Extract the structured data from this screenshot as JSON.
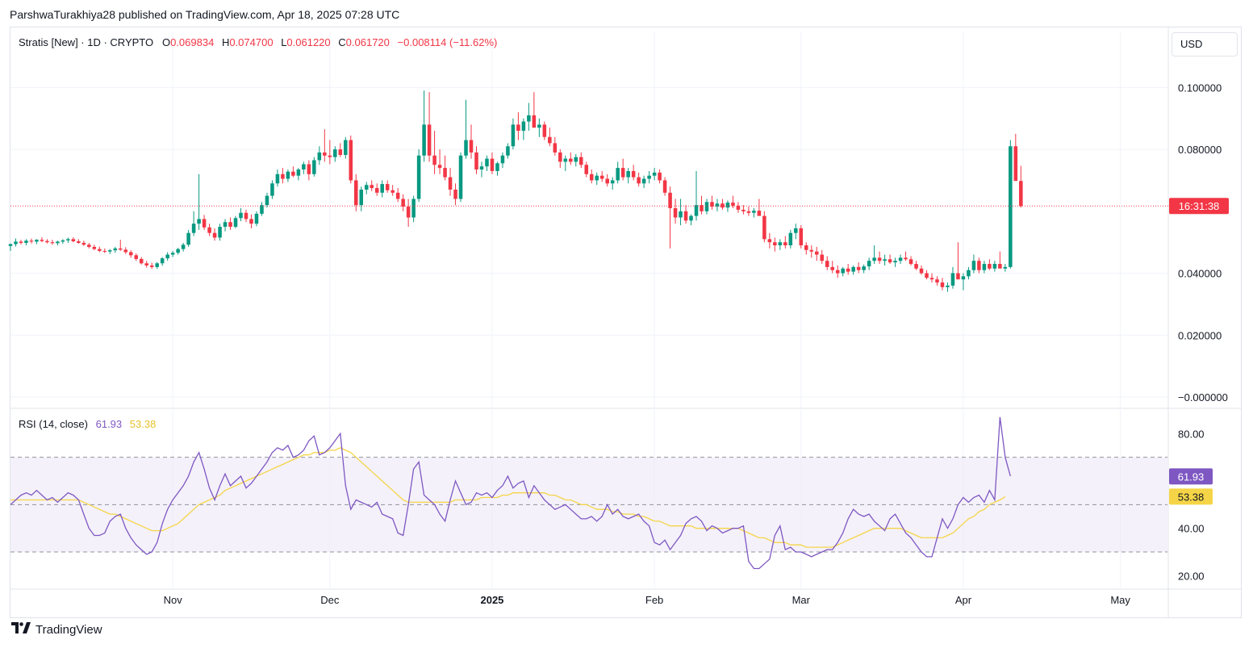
{
  "header": {
    "published_text": "ParshwaTurakhiya28 published on TradingView.com, Apr 18, 2025 07:28 UTC"
  },
  "legend": {
    "symbol": "Stratis [New] · 1D · CRYPTO",
    "o_label": "O",
    "o_value": "0.069834",
    "h_label": "H",
    "h_value": "0.074700",
    "l_label": "L",
    "l_value": "0.061220",
    "c_label": "C",
    "c_value": "0.061720",
    "change": "−0.008114 (−11.62%)"
  },
  "currency": "USD",
  "countdown": "16:31:38",
  "rsi_legend": {
    "label": "RSI (14, close)",
    "rsi_value": "61.93",
    "ma_value": "53.38"
  },
  "footer": {
    "logo_icon": "tradingview-logo-icon",
    "brand": "TradingView"
  },
  "colors": {
    "up": "#089981",
    "down": "#f23645",
    "rsi": "#7e57c2",
    "rsi_ma": "#f5d547",
    "rsi_band": "#ede7f6",
    "grid": "#f0f3fa",
    "countdown_bg": "#f23645"
  },
  "chart_data": [
    {
      "type": "candlestick",
      "title": "Stratis [New] · 1D · CRYPTO",
      "x_range": [
        "2024-10-01",
        "2025-05-10"
      ],
      "ylim": [
        0,
        0.11
      ],
      "price_ticks": [
        "0.100000",
        "0.080000",
        "0.040000",
        "0.020000",
        "−0.000000"
      ],
      "x_ticks": [
        "Nov",
        "Dec",
        "2025",
        "Feb",
        "Mar",
        "Apr",
        "May"
      ],
      "last_price": 0.06172,
      "anchors": {
        "start": "2024-10-01",
        "ohlc_csv": "0.0488,0.0496,0.0472,0.0494;0.0494,0.0512,0.0486,0.0502;0.0502,0.0508,0.0493,0.0498;0.0498,0.0510,0.0490,0.0505;0.0505,0.0512,0.0496,0.0502;0.0502,0.0510,0.0494,0.0508;0.0508,0.0516,0.0500,0.0504;0.0504,0.0510,0.0496,0.0500;0.0500,0.0508,0.0492,0.0497;0.0497,0.0505,0.0490,0.0502;0.0502,0.0510,0.0495,0.0506;0.0506,0.0515,0.0498,0.0510;0.0510,0.0516,0.0500,0.0503;0.0503,0.0510,0.0495,0.0498;0.0498,0.0505,0.0488,0.0492;0.0492,0.0498,0.0480,0.0485;0.0485,0.0492,0.0474,0.0478;0.0478,0.0486,0.0468,0.0472;0.0472,0.0480,0.0465,0.0470;0.0470,0.0478,0.0462,0.0474;0.0474,0.0485,0.0466,0.0480;0.0480,0.0508,0.0472,0.0476;0.0476,0.0484,0.0462,0.0468;0.0468,0.0474,0.0450,0.0458;0.0458,0.0464,0.0440,0.0446;0.0446,0.0452,0.0428,0.0432;0.0432,0.0440,0.0418,0.0425;0.0425,0.0434,0.0414,0.0420;0.0420,0.0436,0.0414,0.0432;0.0432,0.0452,0.0424,0.0448;0.0448,0.0468,0.0440,0.0460;0.0460,0.0472,0.0452,0.0466;0.0466,0.0482,0.0460,0.0478;0.0478,0.0498,0.0470,0.0492;0.0492,0.0540,0.0485,0.0530;0.0530,0.0600,0.0520,0.0560;0.0560,0.0720,0.0540,0.0575;0.0575,0.0588,0.0540,0.0548;0.0548,0.0560,0.0520,0.0530;0.0530,0.0545,0.0505,0.0515;0.0515,0.0560,0.0505,0.0550;0.0550,0.0575,0.0535,0.0565;0.0565,0.0580,0.0540,0.0550;0.0550,0.0585,0.0545,0.0578;0.0578,0.0610,0.0568,0.0595;0.0595,0.0605,0.0565,0.0575;0.0575,0.0590,0.0545,0.0560;0.0560,0.0600,0.0552,0.0592;0.0592,0.0630,0.0585,0.0620;0.0620,0.0660,0.0612,0.0650;0.0650,0.0700,0.0640,0.0690;0.0690,0.0735,0.0680,0.0720;0.0720,0.0740,0.0690,0.0705;0.0705,0.0735,0.0695,0.0728;0.0728,0.0745,0.0710,0.0715;0.0715,0.0740,0.0700,0.0735;0.0735,0.0760,0.0720,0.0752;0.0752,0.0765,0.0700,0.0720;0.0720,0.0775,0.0712,0.0765;0.0765,0.0810,0.0750,0.0790;0.0790,0.0865,0.0760,0.0780;0.0780,0.0830,0.0752,0.0775;0.0775,0.0810,0.0760,0.0800;0.0800,0.0820,0.0775,0.0782;0.0782,0.0840,0.0770,0.0830;0.0830,0.0845,0.0690,0.0700;0.0700,0.0720,0.0600,0.0620;0.0620,0.0680,0.0600,0.0670;0.0670,0.0695,0.0655,0.0685;0.0685,0.0700,0.0665,0.0675;0.0675,0.0690,0.0650,0.0660;0.0660,0.0700,0.0645,0.0688;0.0688,0.0700,0.0660,0.0668;0.0668,0.0685,0.0650,0.0660;0.0660,0.0675,0.0630,0.0640;0.0640,0.0655,0.0600,0.0615;0.0615,0.0640,0.0550,0.0580;0.0580,0.0650,0.0565,0.0640;0.0640,0.0800,0.0630,0.0780;0.0780,0.0990,0.0760,0.0880;0.0880,0.0985,0.0760,0.0780;0.0780,0.0860,0.0720,0.0750;0.0750,0.0800,0.0720,0.0740;0.0740,0.0780,0.0700,0.0710;0.0710,0.0740,0.0650,0.0670;0.0670,0.0690,0.0620,0.0640;0.0640,0.0790,0.0630,0.0780;0.0780,0.0960,0.0770,0.0830;0.0830,0.0880,0.0770,0.0790;0.0790,0.0810,0.0720,0.0735;0.0735,0.0760,0.0710,0.0745;0.0745,0.0780,0.0730,0.0770;0.0770,0.0790,0.0720,0.0730;0.0730,0.0760,0.0715,0.0755;0.0755,0.0790,0.0740,0.0780;0.0780,0.0820,0.0770,0.0810;0.0810,0.0900,0.0800,0.0880;0.0880,0.0920,0.0830,0.0860;0.0860,0.0900,0.0830,0.0890;0.0890,0.0950,0.0860,0.0910;0.0910,0.0985,0.0880,0.0870;0.0870,0.0900,0.0840,0.0880;0.0880,0.0890,0.0830,0.0840;0.0840,0.0870,0.0810,0.0820;0.0820,0.0840,0.0780,0.0790;0.0790,0.0800,0.0740,0.0760;0.0760,0.0780,0.0730,0.0770;0.0770,0.0790,0.0750,0.0760;0.0760,0.0785,0.0745,0.0775;0.0775,0.0790,0.0740,0.0750;0.0750,0.0760,0.0710,0.0720;0.0720,0.0735,0.0690,0.0700;0.0700,0.0725,0.0685,0.0715;0.0715,0.0730,0.0695,0.0705;0.0705,0.0720,0.0680,0.0690;0.0690,0.0710,0.0670,0.0700;0.0700,0.0760,0.0690,0.0740;0.0740,0.0770,0.0700,0.0710;0.0710,0.0740,0.0690,0.0730;0.0730,0.0750,0.0700,0.0710;0.0710,0.0725,0.0680,0.0690;0.0690,0.0715,0.0675,0.0705;0.0705,0.0730,0.0690,0.0715;0.0715,0.0740,0.0700,0.0725;0.0725,0.0735,0.0690,0.0700;0.0700,0.0710,0.0650,0.0660;0.0660,0.0680,0.0480,0.0610;0.0610,0.0640,0.0560,0.0580;0.0580,0.0640,0.0555,0.0600;0.0600,0.0620,0.0560,0.0570;0.0570,0.0590,0.0555,0.0585;0.0585,0.0730,0.0570,0.0620;0.0620,0.0650,0.0590,0.0600;0.0600,0.0640,0.0590,0.0630;0.0630,0.0650,0.0605,0.0615;0.0615,0.0640,0.0600,0.0625;0.0625,0.0640,0.0605,0.0612;0.0612,0.0635,0.0598,0.0628;0.0628,0.0650,0.0610,0.0618;0.0618,0.0630,0.0595,0.0605;0.0605,0.0620,0.0590,0.0600;0.0600,0.0615,0.0585,0.0595;0.0595,0.0610,0.0580,0.0602;0.0602,0.0640,0.0595,0.0585;0.0585,0.0600,0.0500,0.0510;0.0510,0.0530,0.0480,0.0500;0.0500,0.0515,0.0470,0.0490;0.0490,0.0510,0.0475,0.0500;0.0500,0.0520,0.0480,0.0490;0.0490,0.0540,0.0480,0.0530;0.0530,0.0560,0.0510,0.0545;0.0545,0.0555,0.0480,0.0490;0.0490,0.0500,0.0460,0.0475;0.0475,0.0490,0.0450,0.0470;0.0470,0.0485,0.0440,0.0460;0.0460,0.0475,0.0430,0.0440;0.0440,0.0455,0.0410,0.0420;0.0420,0.0440,0.0400,0.0410;0.0410,0.0425,0.0385,0.0400;0.0400,0.0420,0.0390,0.0415;0.0415,0.0430,0.0395,0.0405;0.0405,0.0425,0.0395,0.0420;0.0420,0.0435,0.0400,0.0410;0.0410,0.0428,0.0400,0.0422;0.0422,0.0450,0.0410,0.0440;0.0440,0.0490,0.0430,0.0450;0.0450,0.0470,0.0430,0.0440;0.0440,0.0460,0.0425,0.0445;0.0445,0.0460,0.0430,0.0435;0.0435,0.0450,0.0420,0.0440;0.0440,0.0460,0.0430,0.0450;0.0450,0.0470,0.0440,0.0445;0.0445,0.0455,0.0425,0.0430;0.0430,0.0440,0.0410,0.0415;0.0415,0.0425,0.0395,0.0400;0.0400,0.0410,0.0380,0.0385;0.0385,0.0400,0.0370,0.0380;0.0380,0.0390,0.0360,0.0370;0.0370,0.0385,0.0345,0.0355;0.0355,0.0370,0.0340,0.0360;0.0360,0.0420,0.0350,0.0400;0.0400,0.0500,0.0390,0.0380;0.0380,0.0400,0.0345,0.0390;0.0390,0.0420,0.0380,0.0410;0.0410,0.0460,0.0400,0.0440;0.0440,0.0450,0.0400,0.0410;0.0410,0.0440,0.0400,0.0430;0.0430,0.0445,0.0410,0.0415;0.0415,0.0440,0.0405,0.0430;0.0430,0.0470,0.0420,0.0415;0.0415,0.0430,0.0405,0.0420;0.0420,0.0830,0.0415,0.0810;0.0810,0.0850,0.0700,0.0698;0.0698,0.0747,0.0612,0.0617"
      }
    },
    {
      "type": "line",
      "title": "RSI (14, close)",
      "ylim": [
        15,
        90
      ],
      "y_ticks": [
        "80.00",
        "40.00",
        "20.00"
      ],
      "bands": {
        "upper": 70,
        "middle": 50,
        "lower": 30
      },
      "series": [
        {
          "name": "RSI",
          "values": [
            50,
            52,
            54,
            55,
            54,
            56,
            54,
            52,
            53,
            51,
            53,
            55,
            54,
            52,
            46,
            40,
            37,
            37,
            38,
            43,
            45,
            46,
            40,
            36,
            33,
            31,
            29,
            30,
            34,
            42,
            48,
            52,
            55,
            58,
            62,
            68,
            72,
            65,
            57,
            52,
            58,
            63,
            58,
            60,
            62,
            57,
            59,
            62,
            65,
            68,
            72,
            74,
            73,
            75,
            70,
            71,
            73,
            77,
            79,
            71,
            72,
            74,
            77,
            80,
            58,
            48,
            52,
            51,
            50,
            49,
            51,
            46,
            45,
            44,
            38,
            37,
            50,
            65,
            68,
            54,
            52,
            50,
            46,
            43,
            52,
            60,
            55,
            50,
            51,
            55,
            54,
            55,
            53,
            56,
            58,
            62,
            57,
            59,
            60,
            53,
            58,
            55,
            52,
            50,
            48,
            49,
            50,
            48,
            46,
            44,
            44,
            45,
            43,
            45,
            50,
            46,
            48,
            45,
            44,
            45,
            46,
            43,
            41,
            34,
            33,
            35,
            31,
            34,
            37,
            42,
            44,
            45,
            43,
            39,
            41,
            40,
            38,
            39,
            40,
            40,
            41,
            26,
            23,
            23,
            25,
            27,
            37,
            41,
            31,
            32,
            30,
            30,
            29,
            28,
            29,
            30,
            31,
            31,
            34,
            38,
            44,
            48,
            46,
            45,
            46,
            43,
            41,
            39,
            44,
            46,
            42,
            38,
            36,
            33,
            30,
            28,
            28,
            36,
            44,
            40,
            44,
            50,
            53,
            51,
            53,
            54,
            51,
            56,
            52,
            87,
            70,
            62
          ],
          "moving_average": [
            52,
            52,
            52,
            52,
            52,
            52,
            52,
            52,
            52,
            52,
            52,
            52,
            52,
            52,
            51,
            50,
            49,
            48,
            47,
            46,
            46,
            45,
            44,
            43,
            42,
            41,
            40,
            39,
            39,
            39,
            40,
            41,
            42,
            44,
            46,
            48,
            50,
            51,
            52,
            53,
            54,
            56,
            57,
            58,
            59,
            60,
            61,
            62,
            63,
            64,
            65,
            66,
            67,
            68,
            69,
            70,
            71,
            71,
            72,
            72,
            72,
            73,
            73,
            74,
            73,
            72,
            70,
            68,
            66,
            64,
            62,
            60,
            58,
            56,
            54,
            52,
            51,
            51,
            51,
            51,
            51,
            51,
            51,
            51,
            51,
            52,
            52,
            52,
            52,
            52,
            53,
            53,
            53,
            53,
            54,
            54,
            55,
            55,
            55,
            55,
            55,
            55,
            55,
            54,
            54,
            53,
            52,
            52,
            51,
            50,
            50,
            49,
            48,
            48,
            48,
            47,
            47,
            46,
            46,
            46,
            45,
            45,
            44,
            43,
            43,
            42,
            41,
            41,
            41,
            41,
            41,
            40,
            40,
            40,
            40,
            40,
            40,
            40,
            40,
            40,
            39,
            38,
            37,
            36,
            36,
            35,
            34,
            34,
            34,
            33,
            33,
            33,
            32,
            32,
            32,
            32,
            32,
            32,
            33,
            34,
            35,
            36,
            37,
            38,
            39,
            40,
            40,
            40,
            40,
            40,
            40,
            39,
            38,
            37,
            36,
            36,
            36,
            36,
            36,
            37,
            38,
            40,
            42,
            44,
            45,
            47,
            48,
            50,
            51,
            52,
            53.38
          ]
        }
      ],
      "last_rsi": 61.93,
      "last_ma": 53.38
    }
  ]
}
